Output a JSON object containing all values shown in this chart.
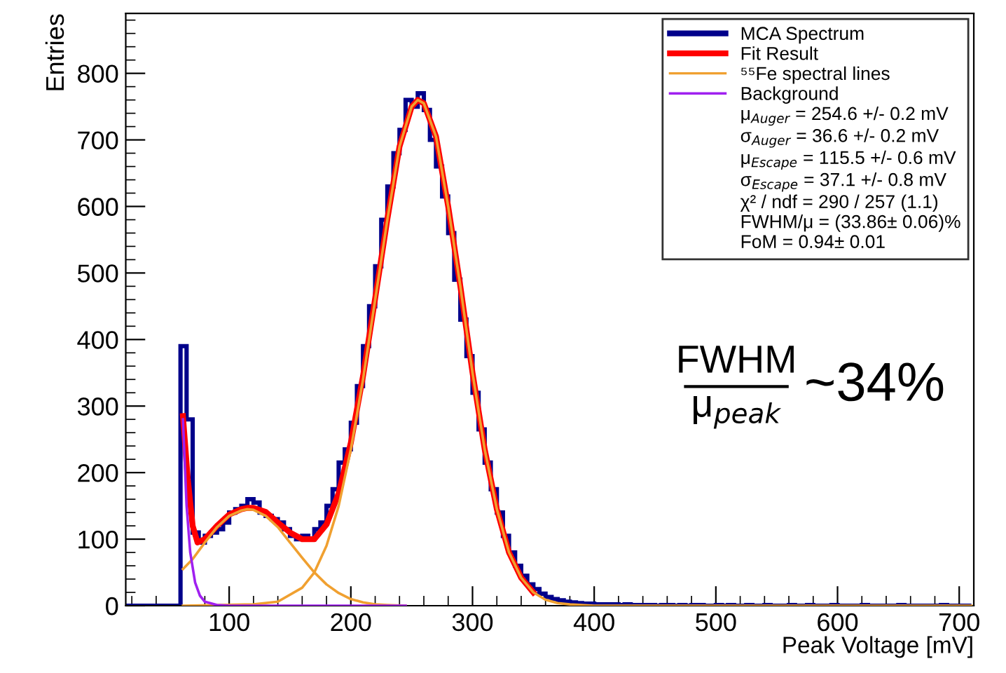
{
  "chart_data": {
    "type": "histogram",
    "xlabel": "Peak Voltage [mV]",
    "ylabel": "Entries",
    "xlim": [
      15,
      712
    ],
    "ylim": [
      0,
      890
    ],
    "xticks": [
      100,
      200,
      300,
      400,
      500,
      600,
      700
    ],
    "yticks": [
      0,
      100,
      200,
      300,
      400,
      500,
      600,
      700,
      800
    ],
    "grid": false,
    "legend": "top right",
    "series": [
      {
        "name": "MCA Spectrum",
        "color": "#00008b",
        "bins": [
          15,
          20,
          25,
          30,
          35,
          40,
          45,
          50,
          55,
          60,
          65,
          70,
          75,
          80,
          85,
          90,
          95,
          100,
          105,
          110,
          115,
          120,
          125,
          130,
          135,
          140,
          145,
          150,
          155,
          160,
          165,
          170,
          175,
          180,
          185,
          190,
          195,
          200,
          205,
          210,
          215,
          220,
          225,
          230,
          235,
          240,
          245,
          250,
          255,
          260,
          265,
          270,
          275,
          280,
          285,
          290,
          295,
          300,
          305,
          310,
          315,
          320,
          325,
          330,
          335,
          340,
          345,
          350,
          355,
          360,
          365,
          370,
          375,
          380,
          385,
          390,
          395,
          400,
          405,
          410,
          415,
          420,
          425,
          430,
          435,
          440,
          445,
          450,
          455,
          460,
          465,
          470,
          475,
          480,
          485,
          490,
          495,
          500,
          505,
          510,
          515,
          520,
          525,
          530,
          535,
          540,
          545,
          550,
          555,
          560,
          565,
          570,
          575,
          580,
          585,
          590,
          595,
          600,
          605,
          610,
          615,
          620,
          625,
          630,
          635,
          640,
          645,
          650,
          655,
          660,
          665,
          670,
          675,
          680,
          685,
          690,
          695,
          700,
          705,
          710
        ],
        "values": [
          0,
          0,
          0,
          0,
          0,
          0,
          0,
          0,
          0,
          390,
          280,
          110,
          95,
          105,
          110,
          115,
          125,
          140,
          145,
          150,
          160,
          155,
          140,
          135,
          130,
          125,
          115,
          105,
          100,
          105,
          100,
          115,
          125,
          150,
          175,
          215,
          235,
          275,
          330,
          390,
          450,
          510,
          580,
          630,
          680,
          715,
          760,
          750,
          770,
          745,
          700,
          660,
          615,
          560,
          490,
          430,
          375,
          320,
          265,
          215,
          175,
          140,
          105,
          80,
          60,
          45,
          32,
          25,
          18,
          13,
          10,
          8,
          6,
          5,
          4,
          3,
          3,
          2,
          2,
          2,
          2,
          1,
          2,
          1,
          1,
          1,
          1,
          0,
          1,
          1,
          0,
          1,
          0,
          1,
          1,
          0,
          0,
          1,
          0,
          1,
          0,
          0,
          1,
          0,
          0,
          1,
          0,
          0,
          0,
          1,
          0,
          0,
          1,
          0,
          0,
          0,
          1,
          0,
          0,
          0,
          0,
          1,
          0,
          0,
          0,
          0,
          0,
          1,
          0,
          0,
          0,
          0,
          0,
          0,
          1,
          0,
          0,
          0,
          0
        ]
      },
      {
        "name": "Fit Result",
        "type": "line",
        "color": "#ff0000",
        "x": [
          62,
          66,
          70,
          74,
          80,
          90,
          100,
          110,
          115,
          120,
          130,
          140,
          150,
          160,
          165,
          170,
          180,
          190,
          200,
          210,
          220,
          230,
          240,
          250,
          255,
          260,
          270,
          280,
          290,
          300,
          310,
          320,
          330,
          340,
          350
        ],
        "values": [
          285,
          190,
          120,
          95,
          100,
          120,
          137,
          145,
          147,
          147,
          141,
          125,
          110,
          100,
          100,
          100,
          122,
          169,
          245,
          345,
          462,
          581,
          690,
          750,
          760,
          755,
          705,
          600,
          480,
          350,
          235,
          145,
          80,
          42,
          20
        ]
      },
      {
        "name": "⁵⁵Fe spectral lines",
        "type": "line",
        "color": "#f0a030",
        "x": [
          62,
          70,
          80,
          90,
          100,
          110,
          115,
          120,
          130,
          140,
          150,
          160,
          170,
          180,
          190,
          200,
          210,
          220,
          230,
          245
        ],
        "values": [
          55,
          70,
          95,
          118,
          135,
          143,
          145,
          144,
          135,
          118,
          95,
          72,
          50,
          32,
          19,
          10,
          5,
          2,
          1,
          0
        ]
      },
      {
        "type": "line",
        "color": "#f0a030",
        "x": [
          62,
          120,
          140,
          160,
          170,
          180,
          190,
          200,
          210,
          220,
          230,
          240,
          250,
          255,
          260,
          270,
          280,
          290,
          300,
          310,
          320,
          330,
          340,
          350,
          360,
          370,
          380,
          400,
          710
        ],
        "values": [
          0,
          2,
          6,
          27,
          50,
          90,
          150,
          235,
          340,
          460,
          580,
          690,
          750,
          760,
          755,
          705,
          600,
          480,
          350,
          235,
          145,
          80,
          42,
          20,
          9,
          4,
          2,
          0,
          0
        ]
      },
      {
        "name": "Background",
        "type": "line",
        "color": "#a020f0",
        "x": [
          62,
          65,
          68,
          72,
          76,
          80,
          90,
          100,
          245
        ],
        "values": [
          280,
          150,
          80,
          35,
          15,
          6,
          1,
          0,
          0
        ]
      }
    ],
    "annotations": [
      "μ$_{Auger}$ = 254.6 +/- 0.2 mV",
      "σ$_{Auger}$ = 36.6 +/- 0.2 mV",
      "μ$_{Escape}$ = 115.5 +/- 0.6 mV",
      "σ$_{Escape}$ = 37.1 +/- 0.8 mV",
      "χ² / ndf = 290 / 257 (1.1)",
      "FWHM/μ = (33.86± 0.06)%",
      "FoM = 0.94± 0.01",
      "FWHM",
      "μ$_{peak}$",
      "~34%"
    ]
  }
}
